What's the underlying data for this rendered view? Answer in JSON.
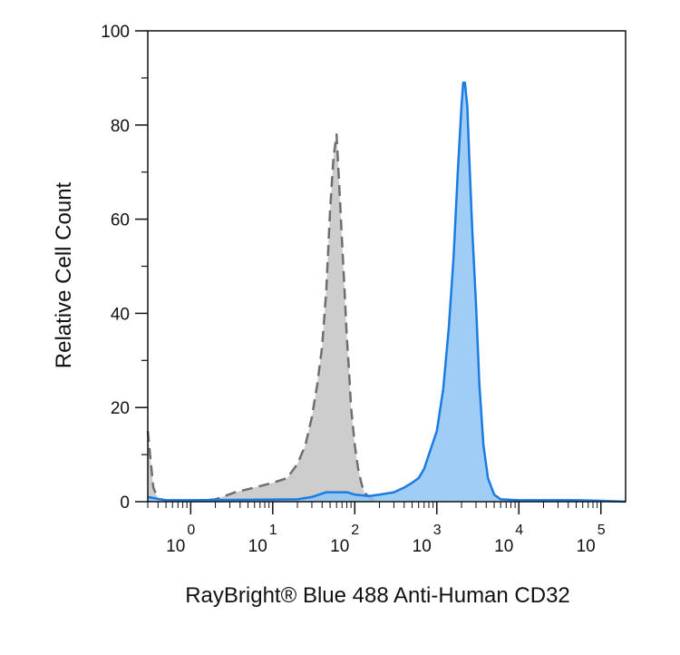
{
  "chart_data": {
    "type": "area",
    "xlabel": "RayBright® Blue 488 Anti-Human CD32",
    "ylabel": "Relative Cell Count",
    "x_scale": "log",
    "xlim": [
      0.3,
      200000
    ],
    "ylim": [
      0,
      100
    ],
    "y_ticks": [
      {
        "value": 0,
        "label": "0"
      },
      {
        "value": 20,
        "label": "20"
      },
      {
        "value": 40,
        "label": "40"
      },
      {
        "value": 60,
        "label": "60"
      },
      {
        "value": 80,
        "label": "80"
      },
      {
        "value": 100,
        "label": "100"
      }
    ],
    "x_ticks": [
      {
        "value": 1,
        "base": "10",
        "exp": "0"
      },
      {
        "value": 10,
        "base": "10",
        "exp": "1"
      },
      {
        "value": 100,
        "base": "10",
        "exp": "2"
      },
      {
        "value": 1000,
        "base": "10",
        "exp": "3"
      },
      {
        "value": 10000,
        "base": "10",
        "exp": "4"
      },
      {
        "value": 100000,
        "base": "10",
        "exp": "5"
      }
    ],
    "series": [
      {
        "style": "dashed-gray-fill",
        "color": "#6e6e6e",
        "fill": "#c8c8c8",
        "points": [
          [
            0.3,
            15
          ],
          [
            0.32,
            10
          ],
          [
            0.35,
            3
          ],
          [
            0.4,
            0.5
          ],
          [
            0.5,
            0.2
          ],
          [
            0.8,
            0.2
          ],
          [
            1.2,
            0.2
          ],
          [
            2,
            0.5
          ],
          [
            3.5,
            2
          ],
          [
            6,
            3
          ],
          [
            10,
            4
          ],
          [
            15,
            5
          ],
          [
            20,
            8
          ],
          [
            25,
            12
          ],
          [
            30,
            18
          ],
          [
            35,
            25
          ],
          [
            40,
            33
          ],
          [
            45,
            45
          ],
          [
            50,
            62
          ],
          [
            55,
            73
          ],
          [
            60,
            78
          ],
          [
            63,
            71
          ],
          [
            66,
            64
          ],
          [
            70,
            55
          ],
          [
            75,
            45
          ],
          [
            80,
            35
          ],
          [
            85,
            28
          ],
          [
            90,
            20
          ],
          [
            100,
            12
          ],
          [
            110,
            7
          ],
          [
            120,
            4
          ],
          [
            130,
            2
          ],
          [
            150,
            1
          ],
          [
            170,
            0.3
          ],
          [
            200,
            0
          ]
        ]
      },
      {
        "style": "solid-blue-fill",
        "color": "#1a7be0",
        "fill": "#8ec4f4",
        "points": [
          [
            0.3,
            1
          ],
          [
            0.5,
            0.3
          ],
          [
            1,
            0.3
          ],
          [
            5,
            0.4
          ],
          [
            20,
            0.5
          ],
          [
            30,
            1
          ],
          [
            45,
            2
          ],
          [
            60,
            2
          ],
          [
            80,
            2
          ],
          [
            100,
            1.5
          ],
          [
            150,
            1.2
          ],
          [
            200,
            1.5
          ],
          [
            300,
            2
          ],
          [
            400,
            3
          ],
          [
            500,
            4
          ],
          [
            600,
            5
          ],
          [
            700,
            7
          ],
          [
            800,
            10
          ],
          [
            1000,
            15
          ],
          [
            1200,
            24
          ],
          [
            1400,
            37
          ],
          [
            1600,
            52
          ],
          [
            1800,
            70
          ],
          [
            2000,
            84
          ],
          [
            2100,
            89
          ],
          [
            2200,
            89
          ],
          [
            2350,
            84
          ],
          [
            2500,
            72
          ],
          [
            2700,
            58
          ],
          [
            3000,
            42
          ],
          [
            3300,
            25
          ],
          [
            3700,
            12
          ],
          [
            4200,
            5
          ],
          [
            5000,
            1.5
          ],
          [
            6000,
            0.5
          ],
          [
            10000,
            0.3
          ],
          [
            50000,
            0.3
          ],
          [
            100000,
            0.2
          ],
          [
            200000,
            0
          ]
        ]
      }
    ],
    "grid": false,
    "legend": "none"
  }
}
